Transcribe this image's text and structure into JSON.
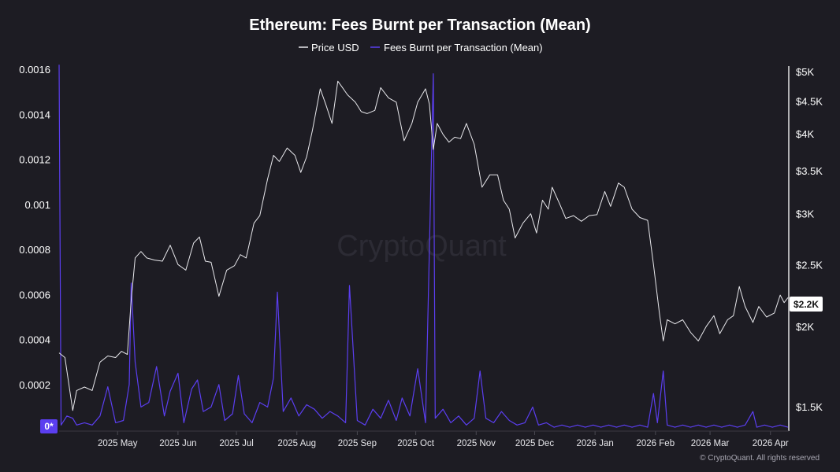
{
  "chart_data": {
    "type": "line",
    "title": "Ethereum: Fees Burnt per Transaction (Mean)",
    "legend_position": "top-center",
    "grid": false,
    "x_ticks": [
      "2025 May",
      "2025 Jun",
      "2025 Jul",
      "2025 Aug",
      "2025 Sep",
      "2025 Oct",
      "2025 Nov",
      "2025 Dec",
      "2026 Jan",
      "2026 Feb",
      "2026 Mar",
      "2026 Apr"
    ],
    "x_range": [
      "2025-04-01",
      "2026-04-10"
    ],
    "y_left": {
      "label": "",
      "ticks": [
        "0.0016",
        "0.0014",
        "0.0012",
        "0.001",
        "0.0008",
        "0.0006",
        "0.0004",
        "0.0002"
      ],
      "range": [
        0,
        0.0016
      ],
      "zero_badge": "0*"
    },
    "y_right": {
      "label": "",
      "scale": "log",
      "ticks": [
        "$5K",
        "$4.5K",
        "$4K",
        "$3.5K",
        "$3K",
        "$2.5K",
        "$2K",
        "$1.5K"
      ],
      "range": [
        1450,
        5000
      ],
      "current_value_badge": "$2.2K"
    },
    "series": [
      {
        "name": "Price USD",
        "axis": "right",
        "color": "#e8e8ec",
        "points": [
          [
            "2025-04-01",
            1820
          ],
          [
            "2025-04-04",
            1790
          ],
          [
            "2025-04-08",
            1480
          ],
          [
            "2025-04-10",
            1590
          ],
          [
            "2025-04-14",
            1610
          ],
          [
            "2025-04-18",
            1590
          ],
          [
            "2025-04-22",
            1760
          ],
          [
            "2025-04-26",
            1800
          ],
          [
            "2025-04-30",
            1790
          ],
          [
            "2025-05-03",
            1830
          ],
          [
            "2025-05-06",
            1810
          ],
          [
            "2025-05-08",
            2200
          ],
          [
            "2025-05-10",
            2560
          ],
          [
            "2025-05-13",
            2620
          ],
          [
            "2025-05-16",
            2560
          ],
          [
            "2025-05-20",
            2540
          ],
          [
            "2025-05-24",
            2530
          ],
          [
            "2025-05-28",
            2680
          ],
          [
            "2025-06-01",
            2500
          ],
          [
            "2025-06-05",
            2450
          ],
          [
            "2025-06-09",
            2700
          ],
          [
            "2025-06-12",
            2760
          ],
          [
            "2025-06-15",
            2530
          ],
          [
            "2025-06-18",
            2520
          ],
          [
            "2025-06-22",
            2230
          ],
          [
            "2025-06-26",
            2450
          ],
          [
            "2025-06-30",
            2490
          ],
          [
            "2025-07-03",
            2590
          ],
          [
            "2025-07-06",
            2560
          ],
          [
            "2025-07-10",
            2900
          ],
          [
            "2025-07-13",
            2980
          ],
          [
            "2025-07-17",
            3400
          ],
          [
            "2025-07-20",
            3700
          ],
          [
            "2025-07-23",
            3620
          ],
          [
            "2025-07-27",
            3800
          ],
          [
            "2025-07-31",
            3700
          ],
          [
            "2025-08-03",
            3480
          ],
          [
            "2025-08-06",
            3680
          ],
          [
            "2025-08-09",
            4050
          ],
          [
            "2025-08-13",
            4700
          ],
          [
            "2025-08-16",
            4430
          ],
          [
            "2025-08-19",
            4150
          ],
          [
            "2025-08-22",
            4830
          ],
          [
            "2025-08-24",
            4740
          ],
          [
            "2025-08-27",
            4600
          ],
          [
            "2025-08-31",
            4480
          ],
          [
            "2025-09-03",
            4330
          ],
          [
            "2025-09-06",
            4300
          ],
          [
            "2025-09-10",
            4350
          ],
          [
            "2025-09-13",
            4720
          ],
          [
            "2025-09-17",
            4550
          ],
          [
            "2025-09-21",
            4480
          ],
          [
            "2025-09-25",
            3900
          ],
          [
            "2025-09-29",
            4150
          ],
          [
            "2025-10-02",
            4480
          ],
          [
            "2025-10-06",
            4700
          ],
          [
            "2025-10-08",
            4450
          ],
          [
            "2025-10-10",
            3780
          ],
          [
            "2025-10-12",
            4150
          ],
          [
            "2025-10-15",
            3990
          ],
          [
            "2025-10-18",
            3880
          ],
          [
            "2025-10-21",
            3950
          ],
          [
            "2025-10-24",
            3930
          ],
          [
            "2025-10-27",
            4150
          ],
          [
            "2025-10-31",
            3850
          ],
          [
            "2025-11-04",
            3300
          ],
          [
            "2025-11-08",
            3450
          ],
          [
            "2025-11-12",
            3450
          ],
          [
            "2025-11-15",
            3150
          ],
          [
            "2025-11-18",
            3050
          ],
          [
            "2025-11-21",
            2750
          ],
          [
            "2025-11-25",
            2900
          ],
          [
            "2025-11-29",
            3000
          ],
          [
            "2025-12-02",
            2800
          ],
          [
            "2025-12-05",
            3150
          ],
          [
            "2025-12-08",
            3050
          ],
          [
            "2025-12-10",
            3300
          ],
          [
            "2025-12-14",
            3100
          ],
          [
            "2025-12-17",
            2950
          ],
          [
            "2025-12-21",
            2980
          ],
          [
            "2025-12-25",
            2920
          ],
          [
            "2025-12-29",
            2980
          ],
          [
            "2026-01-02",
            2990
          ],
          [
            "2026-01-06",
            3250
          ],
          [
            "2026-01-09",
            3080
          ],
          [
            "2026-01-13",
            3350
          ],
          [
            "2026-01-16",
            3300
          ],
          [
            "2026-01-20",
            3050
          ],
          [
            "2026-01-24",
            2960
          ],
          [
            "2026-01-28",
            2930
          ],
          [
            "2026-01-31",
            2500
          ],
          [
            "2026-02-03",
            2100
          ],
          [
            "2026-02-05",
            1900
          ],
          [
            "2026-02-07",
            2050
          ],
          [
            "2026-02-11",
            2020
          ],
          [
            "2026-02-15",
            2050
          ],
          [
            "2026-02-19",
            1960
          ],
          [
            "2026-02-23",
            1900
          ],
          [
            "2026-02-27",
            2000
          ],
          [
            "2026-03-03",
            2080
          ],
          [
            "2026-03-06",
            1950
          ],
          [
            "2026-03-10",
            2050
          ],
          [
            "2026-03-13",
            2080
          ],
          [
            "2026-03-16",
            2310
          ],
          [
            "2026-03-19",
            2150
          ],
          [
            "2026-03-23",
            2030
          ],
          [
            "2026-03-26",
            2150
          ],
          [
            "2026-03-30",
            2070
          ],
          [
            "2026-04-03",
            2100
          ],
          [
            "2026-04-06",
            2240
          ],
          [
            "2026-04-08",
            2180
          ],
          [
            "2026-04-10",
            2220
          ]
        ]
      },
      {
        "name": "Fees Burnt per Transaction (Mean)",
        "axis": "left",
        "color": "#5b3ef0",
        "points": [
          [
            "2025-04-01",
            0.00162
          ],
          [
            "2025-04-02",
            2e-05
          ],
          [
            "2025-04-05",
            6e-05
          ],
          [
            "2025-04-08",
            5e-05
          ],
          [
            "2025-04-10",
            2e-05
          ],
          [
            "2025-04-14",
            3e-05
          ],
          [
            "2025-04-18",
            2e-05
          ],
          [
            "2025-04-22",
            6e-05
          ],
          [
            "2025-04-26",
            0.00019
          ],
          [
            "2025-04-30",
            3e-05
          ],
          [
            "2025-05-04",
            4e-05
          ],
          [
            "2025-05-07",
            0.0002
          ],
          [
            "2025-05-08",
            0.00065
          ],
          [
            "2025-05-10",
            0.0003
          ],
          [
            "2025-05-13",
            0.0001
          ],
          [
            "2025-05-17",
            0.00012
          ],
          [
            "2025-05-21",
            0.00028
          ],
          [
            "2025-05-25",
            6e-05
          ],
          [
            "2025-05-28",
            0.00017
          ],
          [
            "2025-06-01",
            0.00025
          ],
          [
            "2025-06-04",
            3e-05
          ],
          [
            "2025-06-08",
            0.00018
          ],
          [
            "2025-06-11",
            0.00022
          ],
          [
            "2025-06-14",
            8e-05
          ],
          [
            "2025-06-18",
            0.0001
          ],
          [
            "2025-06-22",
            0.0002
          ],
          [
            "2025-06-25",
            4e-05
          ],
          [
            "2025-06-29",
            7e-05
          ],
          [
            "2025-07-02",
            0.00024
          ],
          [
            "2025-07-05",
            7e-05
          ],
          [
            "2025-07-09",
            3e-05
          ],
          [
            "2025-07-13",
            0.00012
          ],
          [
            "2025-07-17",
            0.0001
          ],
          [
            "2025-07-20",
            0.00023
          ],
          [
            "2025-07-22",
            0.00061
          ],
          [
            "2025-07-25",
            8e-05
          ],
          [
            "2025-07-29",
            0.00014
          ],
          [
            "2025-08-02",
            6e-05
          ],
          [
            "2025-08-06",
            0.00011
          ],
          [
            "2025-08-10",
            9e-05
          ],
          [
            "2025-08-14",
            5e-05
          ],
          [
            "2025-08-18",
            8e-05
          ],
          [
            "2025-08-22",
            6e-05
          ],
          [
            "2025-08-26",
            3e-05
          ],
          [
            "2025-08-28",
            0.00064
          ],
          [
            "2025-09-01",
            4e-05
          ],
          [
            "2025-09-05",
            2e-05
          ],
          [
            "2025-09-09",
            9e-05
          ],
          [
            "2025-09-13",
            5e-05
          ],
          [
            "2025-09-17",
            0.00013
          ],
          [
            "2025-09-21",
            4e-05
          ],
          [
            "2025-09-24",
            0.00014
          ],
          [
            "2025-09-28",
            6e-05
          ],
          [
            "2025-10-02",
            0.00027
          ],
          [
            "2025-10-06",
            3e-05
          ],
          [
            "2025-10-10",
            0.00158
          ],
          [
            "2025-10-11",
            5e-05
          ],
          [
            "2025-10-15",
            9e-05
          ],
          [
            "2025-10-19",
            3e-05
          ],
          [
            "2025-10-23",
            6e-05
          ],
          [
            "2025-10-27",
            2e-05
          ],
          [
            "2025-10-31",
            5e-05
          ],
          [
            "2025-11-03",
            0.00026
          ],
          [
            "2025-11-06",
            5e-05
          ],
          [
            "2025-11-10",
            3e-05
          ],
          [
            "2025-11-14",
            8e-05
          ],
          [
            "2025-11-18",
            4e-05
          ],
          [
            "2025-11-22",
            2e-05
          ],
          [
            "2025-11-26",
            3e-05
          ],
          [
            "2025-11-30",
            0.0001
          ],
          [
            "2025-12-03",
            2e-05
          ],
          [
            "2025-12-07",
            3e-05
          ],
          [
            "2025-12-11",
            1e-05
          ],
          [
            "2025-12-15",
            2e-05
          ],
          [
            "2025-12-19",
            1e-05
          ],
          [
            "2025-12-23",
            2e-05
          ],
          [
            "2025-12-27",
            1e-05
          ],
          [
            "2025-12-31",
            2e-05
          ],
          [
            "2026-01-04",
            1e-05
          ],
          [
            "2026-01-08",
            2e-05
          ],
          [
            "2026-01-12",
            1e-05
          ],
          [
            "2026-01-16",
            2e-05
          ],
          [
            "2026-01-20",
            1e-05
          ],
          [
            "2026-01-24",
            2e-05
          ],
          [
            "2026-01-28",
            1e-05
          ],
          [
            "2026-01-31",
            0.00016
          ],
          [
            "2026-02-02",
            3e-05
          ],
          [
            "2026-02-05",
            0.00026
          ],
          [
            "2026-02-07",
            2e-05
          ],
          [
            "2026-02-11",
            1e-05
          ],
          [
            "2026-02-15",
            2e-05
          ],
          [
            "2026-02-19",
            1e-05
          ],
          [
            "2026-02-23",
            2e-05
          ],
          [
            "2026-02-27",
            1e-05
          ],
          [
            "2026-03-03",
            2e-05
          ],
          [
            "2026-03-07",
            1e-05
          ],
          [
            "2026-03-11",
            2e-05
          ],
          [
            "2026-03-15",
            1e-05
          ],
          [
            "2026-03-19",
            2e-05
          ],
          [
            "2026-03-23",
            8e-05
          ],
          [
            "2026-03-25",
            1e-05
          ],
          [
            "2026-03-29",
            2e-05
          ],
          [
            "2026-04-02",
            1e-05
          ],
          [
            "2026-04-06",
            2e-05
          ],
          [
            "2026-04-10",
            1e-05
          ]
        ]
      }
    ]
  },
  "watermark": "CryptoQuant",
  "copyright": "© CryptoQuant. All rights reserved"
}
